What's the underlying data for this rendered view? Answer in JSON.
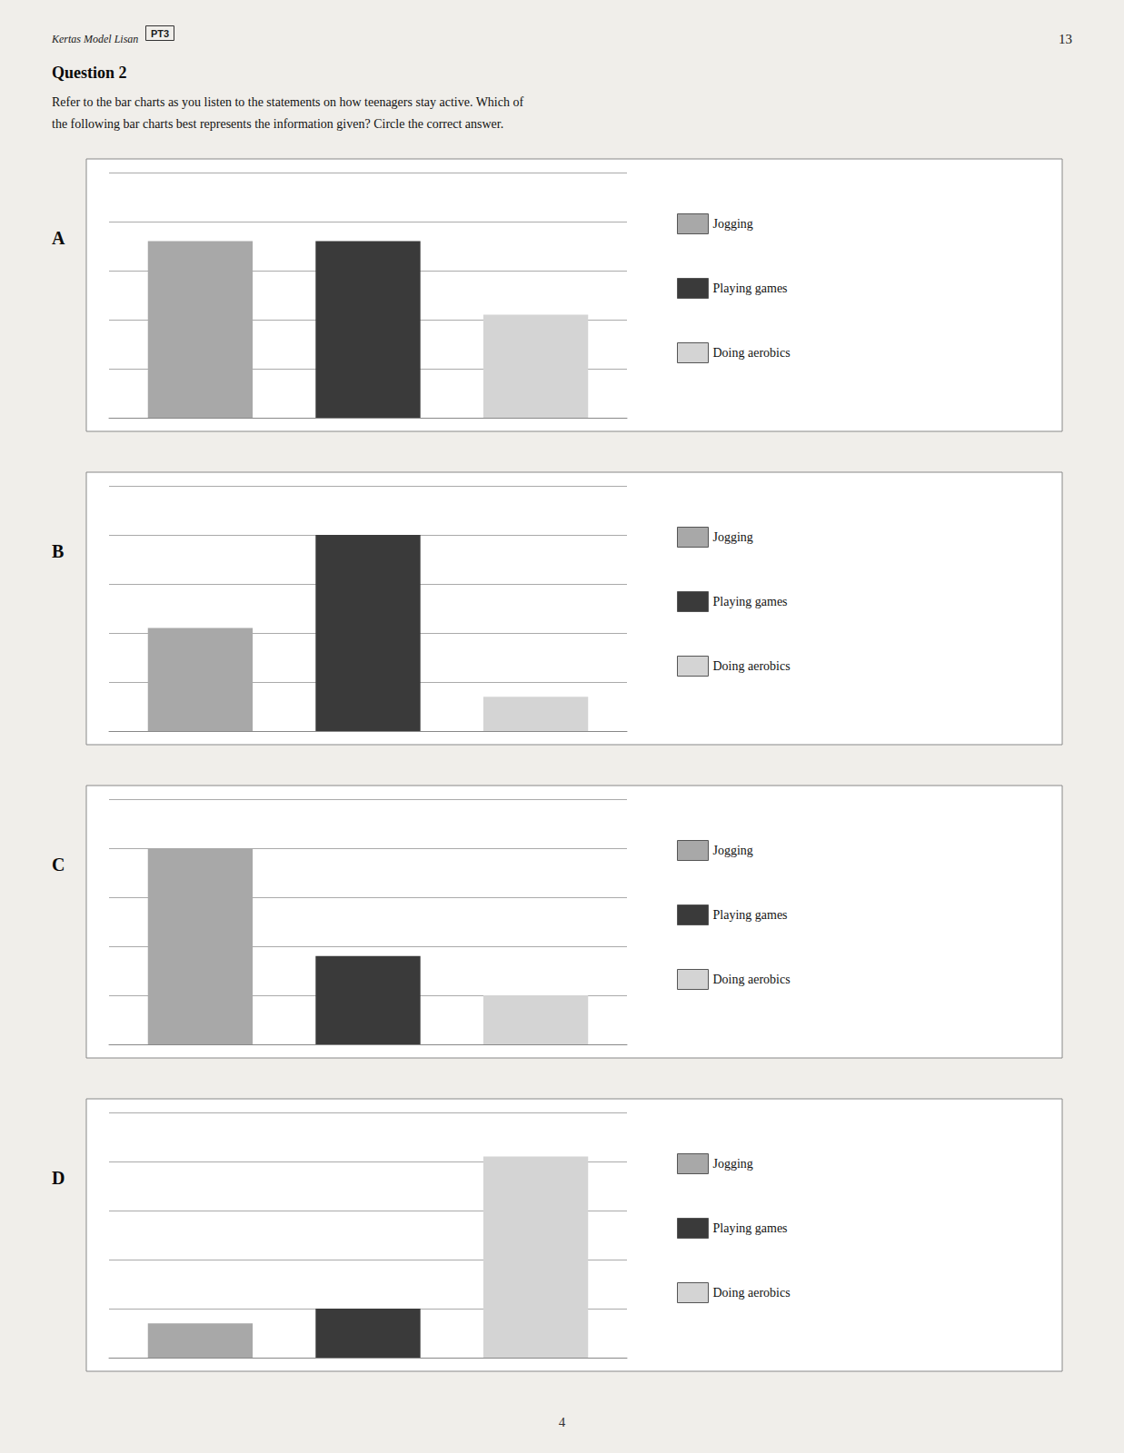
{
  "title": "Question 2",
  "subtitle": [
    "Refer to the bar charts as you listen to the statements on how teenagers stay active. Which of",
    "the following bar charts best represents the information given? Circle the correct answer."
  ],
  "annotations": [
    "Kertas Model Lisan",
    "PT3",
    "13",
    "4"
  ],
  "chart_data": [
    {
      "type": "bar",
      "title": "A",
      "categories": [
        null
      ],
      "series": [
        {
          "name": "Jogging",
          "color": "#a8a8a8",
          "values": [
            72
          ]
        },
        {
          "name": "Playing games",
          "color": "#3a3a3a",
          "values": [
            72
          ]
        },
        {
          "name": "Doing aerobics",
          "color": "#d4d4d4",
          "values": [
            42
          ]
        }
      ],
      "ylim": [
        0,
        100
      ],
      "yticks": [
        0,
        20,
        40,
        60,
        80,
        100
      ],
      "grid": true,
      "legend": "right",
      "tick_labels": false
    },
    {
      "type": "bar",
      "title": "B",
      "categories": [
        null
      ],
      "series": [
        {
          "name": "Jogging",
          "color": "#a8a8a8",
          "values": [
            42
          ]
        },
        {
          "name": "Playing games",
          "color": "#3a3a3a",
          "values": [
            80
          ]
        },
        {
          "name": "Doing aerobics",
          "color": "#d4d4d4",
          "values": [
            14
          ]
        }
      ],
      "ylim": [
        0,
        100
      ],
      "yticks": [
        0,
        20,
        40,
        60,
        80,
        100
      ],
      "grid": true,
      "legend": "right",
      "tick_labels": false
    },
    {
      "type": "bar",
      "title": "C",
      "categories": [
        null
      ],
      "series": [
        {
          "name": "Jogging",
          "color": "#a8a8a8",
          "values": [
            80
          ]
        },
        {
          "name": "Playing games",
          "color": "#3a3a3a",
          "values": [
            36
          ]
        },
        {
          "name": "Doing aerobics",
          "color": "#d4d4d4",
          "values": [
            20
          ]
        }
      ],
      "ylim": [
        0,
        100
      ],
      "yticks": [
        0,
        20,
        40,
        60,
        80,
        100
      ],
      "grid": true,
      "legend": "right",
      "tick_labels": false
    },
    {
      "type": "bar",
      "title": "D",
      "categories": [
        null
      ],
      "series": [
        {
          "name": "Jogging",
          "color": "#a8a8a8",
          "values": [
            14
          ]
        },
        {
          "name": "Playing games",
          "color": "#3a3a3a",
          "values": [
            20
          ]
        },
        {
          "name": "Doing aerobics",
          "color": "#d4d4d4",
          "values": [
            82
          ]
        }
      ],
      "ylim": [
        0,
        100
      ],
      "yticks": [
        0,
        20,
        40,
        60,
        80,
        100
      ],
      "grid": true,
      "legend": "right",
      "tick_labels": false
    }
  ]
}
